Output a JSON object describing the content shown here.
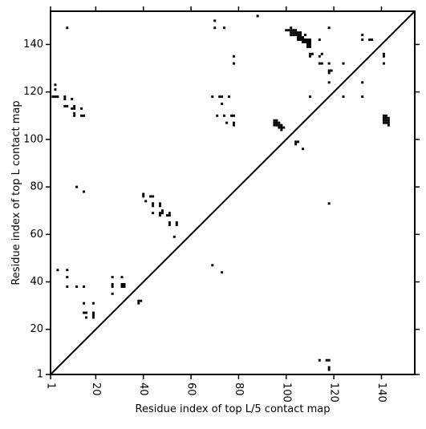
{
  "chart_data": {
    "type": "scatter",
    "marker": "square",
    "xlabel": "Residue index of top L/5 contact map",
    "ylabel": "Residue index of top L contact map",
    "xlim": [
      1,
      154
    ],
    "ylim": [
      1,
      154
    ],
    "xticks": [
      1,
      20,
      40,
      60,
      80,
      100,
      120,
      140
    ],
    "xtick_labels": [
      "1",
      "20",
      "40",
      "60",
      "80",
      "100",
      "120",
      "140"
    ],
    "yticks": [
      1,
      20,
      40,
      60,
      80,
      100,
      120,
      140
    ],
    "ytick_labels": [
      "1",
      "20",
      "40",
      "60",
      "80",
      "100",
      "120",
      "140"
    ],
    "diagonal": true,
    "grid": false,
    "colors": {
      "marker": "#000000",
      "axes": "#000000",
      "background": "#ffffff"
    },
    "upper_points": [
      [
        8,
        147
      ],
      [
        70,
        150
      ],
      [
        70,
        147
      ],
      [
        74,
        147
      ],
      [
        88,
        152
      ],
      [
        78,
        135
      ],
      [
        78,
        132
      ],
      [
        3,
        123
      ],
      [
        3,
        121
      ],
      [
        2,
        118
      ],
      [
        3,
        118
      ],
      [
        4,
        118
      ],
      [
        7,
        118
      ],
      [
        7,
        117
      ],
      [
        10,
        117
      ],
      [
        7,
        114
      ],
      [
        8,
        114
      ],
      [
        10,
        113
      ],
      [
        11,
        114
      ],
      [
        11,
        113
      ],
      [
        11,
        111
      ],
      [
        11,
        110
      ],
      [
        14,
        113
      ],
      [
        14,
        110
      ],
      [
        15,
        110
      ],
      [
        69,
        118
      ],
      [
        72,
        118
      ],
      [
        73,
        118
      ],
      [
        76,
        118
      ],
      [
        73,
        115
      ],
      [
        71,
        110
      ],
      [
        74,
        110
      ],
      [
        77,
        110
      ],
      [
        78,
        110
      ],
      [
        75,
        107
      ],
      [
        78,
        107
      ],
      [
        78,
        106
      ],
      [
        12,
        80
      ],
      [
        15,
        78
      ],
      [
        40,
        77
      ],
      [
        40,
        76
      ],
      [
        41,
        74
      ],
      [
        43,
        76
      ],
      [
        44,
        76
      ],
      [
        44,
        73
      ],
      [
        44,
        72
      ],
      [
        44,
        69
      ],
      [
        47,
        73
      ],
      [
        47,
        72
      ],
      [
        47,
        69
      ],
      [
        47,
        68
      ],
      [
        48,
        70
      ],
      [
        48,
        69
      ],
      [
        50,
        68
      ],
      [
        51,
        69
      ],
      [
        51,
        68
      ],
      [
        51,
        65
      ],
      [
        51,
        64
      ],
      [
        53,
        59
      ],
      [
        54,
        65
      ],
      [
        54,
        64
      ],
      [
        4,
        45
      ],
      [
        8,
        45
      ],
      [
        8,
        42
      ],
      [
        8,
        38
      ],
      [
        12,
        38
      ],
      [
        15,
        38
      ],
      [
        15,
        31
      ],
      [
        15,
        27
      ],
      [
        16,
        27
      ],
      [
        16,
        25
      ],
      [
        19,
        31
      ],
      [
        19,
        27
      ],
      [
        19,
        26
      ],
      [
        19,
        25
      ],
      [
        27,
        42
      ],
      [
        27,
        39
      ],
      [
        27,
        38
      ],
      [
        27,
        35
      ],
      [
        31,
        42
      ],
      [
        31,
        39
      ],
      [
        31,
        38
      ],
      [
        32,
        39
      ],
      [
        32,
        38
      ],
      [
        38,
        32
      ],
      [
        39,
        32
      ],
      [
        38,
        31
      ],
      [
        69,
        47
      ],
      [
        73,
        44
      ]
    ],
    "lower_points": [
      [
        95,
        108
      ],
      [
        96,
        108
      ],
      [
        95,
        107
      ],
      [
        96,
        107
      ],
      [
        97,
        107
      ],
      [
        95,
        106
      ],
      [
        96,
        106
      ],
      [
        97,
        106
      ],
      [
        98,
        106
      ],
      [
        97,
        105
      ],
      [
        98,
        105
      ],
      [
        99,
        105
      ],
      [
        98,
        104
      ],
      [
        104,
        99
      ],
      [
        105,
        99
      ],
      [
        104,
        98
      ],
      [
        107,
        96
      ],
      [
        100,
        146
      ],
      [
        101,
        146
      ],
      [
        102,
        147
      ],
      [
        102,
        146
      ],
      [
        103,
        146
      ],
      [
        104,
        146
      ],
      [
        105,
        145
      ],
      [
        106,
        145
      ],
      [
        102,
        145
      ],
      [
        103,
        145
      ],
      [
        104,
        145
      ],
      [
        102,
        144
      ],
      [
        103,
        144
      ],
      [
        104,
        144
      ],
      [
        105,
        144
      ],
      [
        106,
        144
      ],
      [
        105,
        143
      ],
      [
        106,
        143
      ],
      [
        107,
        143
      ],
      [
        108,
        144
      ],
      [
        105,
        142
      ],
      [
        106,
        142
      ],
      [
        107,
        142
      ],
      [
        108,
        142
      ],
      [
        109,
        142
      ],
      [
        107,
        141
      ],
      [
        108,
        141
      ],
      [
        109,
        141
      ],
      [
        110,
        141
      ],
      [
        110,
        142
      ],
      [
        109,
        140
      ],
      [
        110,
        140
      ],
      [
        109,
        139
      ],
      [
        110,
        139
      ],
      [
        114,
        142
      ],
      [
        118,
        147
      ],
      [
        110,
        136
      ],
      [
        111,
        136
      ],
      [
        110,
        135
      ],
      [
        114,
        135
      ],
      [
        115,
        136
      ],
      [
        114,
        132
      ],
      [
        115,
        132
      ],
      [
        118,
        132
      ],
      [
        118,
        129
      ],
      [
        119,
        129
      ],
      [
        118,
        128
      ],
      [
        118,
        124
      ],
      [
        124,
        132
      ],
      [
        132,
        144
      ],
      [
        132,
        142
      ],
      [
        135,
        142
      ],
      [
        136,
        142
      ],
      [
        132,
        124
      ],
      [
        141,
        136
      ],
      [
        141,
        135
      ],
      [
        141,
        132
      ],
      [
        110,
        118
      ],
      [
        124,
        118
      ],
      [
        132,
        118
      ],
      [
        141,
        110
      ],
      [
        142,
        110
      ],
      [
        141,
        109
      ],
      [
        142,
        109
      ],
      [
        143,
        109
      ],
      [
        141,
        108
      ],
      [
        142,
        108
      ],
      [
        143,
        108
      ],
      [
        141,
        107
      ],
      [
        142,
        107
      ],
      [
        143,
        107
      ],
      [
        143,
        106
      ],
      [
        118,
        73
      ],
      [
        114,
        7
      ],
      [
        117,
        7
      ],
      [
        118,
        7
      ],
      [
        118,
        4
      ],
      [
        118,
        3
      ]
    ]
  }
}
